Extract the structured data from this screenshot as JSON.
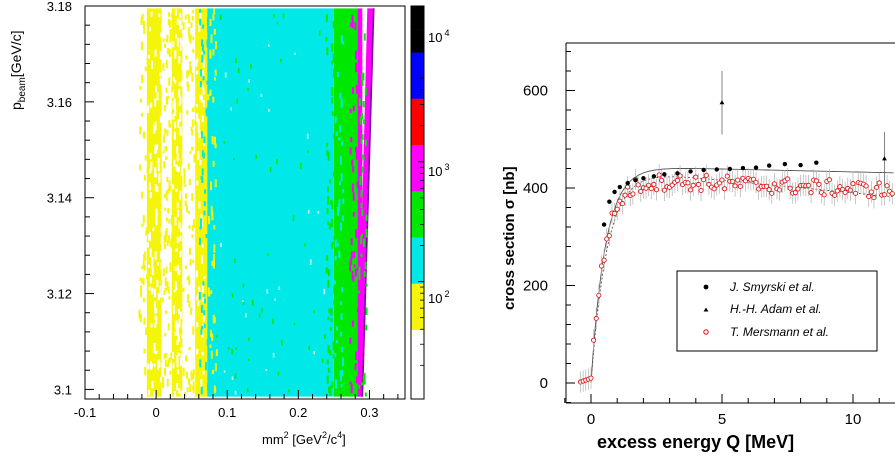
{
  "chart_data": [
    {
      "type": "heatmap",
      "ylabel_main": "p",
      "ylabel_sub": "beam",
      "ylabel_unit": "[GeV/c]",
      "xlabel_main": "mm",
      "xlabel_sup": "2",
      "xlabel_unit_pre": " [GeV",
      "xlabel_unit_sup1": "2",
      "xlabel_unit_mid": "/c",
      "xlabel_unit_sup2": "4",
      "xlabel_unit_post": "]",
      "xlim": [
        -0.1,
        0.35
      ],
      "ylim": [
        3.098,
        3.18
      ],
      "x_ticks": [
        {
          "v": -0.1,
          "label": "-0.1"
        },
        {
          "v": 0,
          "label": "0"
        },
        {
          "v": 0.1,
          "label": "0.1"
        },
        {
          "v": 0.2,
          "label": "0.2"
        },
        {
          "v": 0.3,
          "label": "0.3"
        }
      ],
      "y_ticks": [
        {
          "v": 3.1,
          "label": "3.1"
        },
        {
          "v": 3.12,
          "label": "3.12"
        },
        {
          "v": 3.14,
          "label": "3.14"
        },
        {
          "v": 3.16,
          "label": "3.16"
        },
        {
          "v": 3.18,
          "label": "3.18"
        }
      ],
      "bands": [
        {
          "x0": -0.013,
          "x1": 0.008,
          "level": "yellow"
        },
        {
          "x0": 0.008,
          "x1": 0.022,
          "level": "white"
        },
        {
          "x0": 0.022,
          "x1": 0.037,
          "level": "yellow"
        },
        {
          "x0": 0.037,
          "x1": 0.055,
          "level": "white"
        },
        {
          "x0": 0.055,
          "x1": 0.072,
          "level": "yellow"
        },
        {
          "x0": 0.072,
          "x1": 0.25,
          "level": "cyan"
        },
        {
          "x0": 0.25,
          "x1": 0.283,
          "level": "green"
        },
        {
          "x0": 0.283,
          "x1": 0.29,
          "level": "magenta"
        }
      ],
      "colorbar": {
        "levels": [
          "#ffffff",
          "#ffffff",
          "#ffffff",
          "#f5f50a",
          "#f5f50a",
          "#00e8e8",
          "#00e8e8",
          "#00e800",
          "#00e800",
          "#ff00ff",
          "#ff00ff",
          "#ff0000",
          "#ff0000",
          "#0000ff",
          "#0000ff",
          "#000000",
          "#000000"
        ],
        "labels": [
          {
            "base": "10",
            "exp": "2"
          },
          {
            "base": "10",
            "exp": "3"
          },
          {
            "base": "10",
            "exp": "4"
          }
        ]
      },
      "colors": {
        "yellow": "#f5f50a",
        "cyan": "#00e8e8",
        "green": "#00e800",
        "magenta": "#ff00ff",
        "white": "#ffffff",
        "red": "#ff0000",
        "blue": "#0000ff"
      }
    },
    {
      "type": "scatter",
      "ylabel": "cross section σ [nb]",
      "xlabel": "excess energy Q [MeV]",
      "xlim": [
        -1,
        11.5
      ],
      "ylim": [
        -50,
        700
      ],
      "x_ticks": [
        {
          "v": 0,
          "label": "0"
        },
        {
          "v": 5,
          "label": "5"
        },
        {
          "v": 10,
          "label": "10"
        }
      ],
      "y_ticks": [
        {
          "v": 0,
          "label": "0"
        },
        {
          "v": 200,
          "label": "200"
        },
        {
          "v": 400,
          "label": "400"
        },
        {
          "v": 600,
          "label": "600"
        }
      ],
      "legend_position": "lower-right",
      "series": [
        {
          "name": "J. Smyrski et al.",
          "marker": "dot",
          "x": [
            0.5,
            0.7,
            0.9,
            1.1,
            1.4,
            1.7,
            2.0,
            2.4,
            2.8,
            3.3,
            3.8,
            4.3,
            4.8,
            5.3,
            5.8,
            6.3,
            6.8,
            7.4,
            8.0,
            8.6
          ],
          "y": [
            325,
            372,
            392,
            402,
            410,
            416,
            420,
            424,
            428,
            430,
            434,
            437,
            438,
            439,
            441,
            442,
            446,
            449,
            447,
            452
          ]
        },
        {
          "name": "H.-H. Adam et al.",
          "marker": "triangle",
          "x": [
            5.0,
            11.2
          ],
          "y": [
            575,
            460
          ],
          "err": [
            65,
            55
          ]
        },
        {
          "name": "T. Mersmann et al.",
          "marker": "open-circle"
        }
      ],
      "fit_solid": {
        "amp": 445,
        "tau": 0.55,
        "slope": -1.2
      },
      "fit_dotted": {
        "amp": 442,
        "tau": 0.62,
        "slope": -5.2
      },
      "mersmann_model": {
        "amp": 420,
        "tau": 0.5,
        "slope": -2.2,
        "q_start": -0.4,
        "q_end": 11.5,
        "step": 0.1,
        "err": 22
      }
    }
  ]
}
